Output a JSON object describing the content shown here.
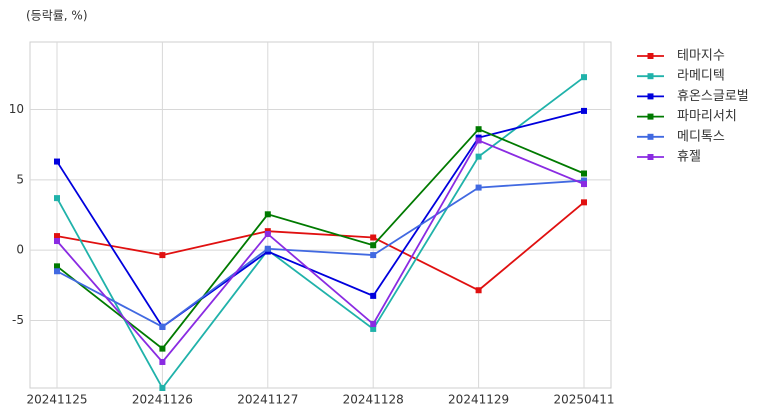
{
  "chart_data": {
    "type": "line",
    "y_label": "(등락률, %)",
    "categories": [
      "20241125",
      "20241126",
      "20241127",
      "20241128",
      "20241129",
      "20250411"
    ],
    "series": [
      {
        "name": "테마지수",
        "color": "#e01010",
        "values": [
          1.0,
          -0.35,
          1.35,
          0.9,
          -2.85,
          3.4
        ]
      },
      {
        "name": "라메디텍",
        "color": "#20b2aa",
        "values": [
          3.7,
          -9.8,
          0.0,
          -5.6,
          6.65,
          12.3
        ]
      },
      {
        "name": "휴온스글로벌",
        "color": "#0000dd",
        "values": [
          6.3,
          -5.45,
          -0.1,
          -3.25,
          8.0,
          9.9
        ]
      },
      {
        "name": "파마리서치",
        "color": "#007a00",
        "values": [
          -1.15,
          -7.0,
          2.55,
          0.35,
          8.6,
          5.45
        ]
      },
      {
        "name": "메디톡스",
        "color": "#4169e1",
        "values": [
          -1.5,
          -5.45,
          0.1,
          -0.35,
          4.45,
          4.95
        ]
      },
      {
        "name": "휴젤",
        "color": "#8a2be2",
        "values": [
          0.65,
          -7.95,
          1.15,
          -5.25,
          7.8,
          4.7
        ]
      }
    ],
    "ylim": [
      -9.8,
      14.8
    ],
    "yticks": [
      -5,
      0,
      5,
      10
    ],
    "grid": true,
    "legend": "right"
  }
}
